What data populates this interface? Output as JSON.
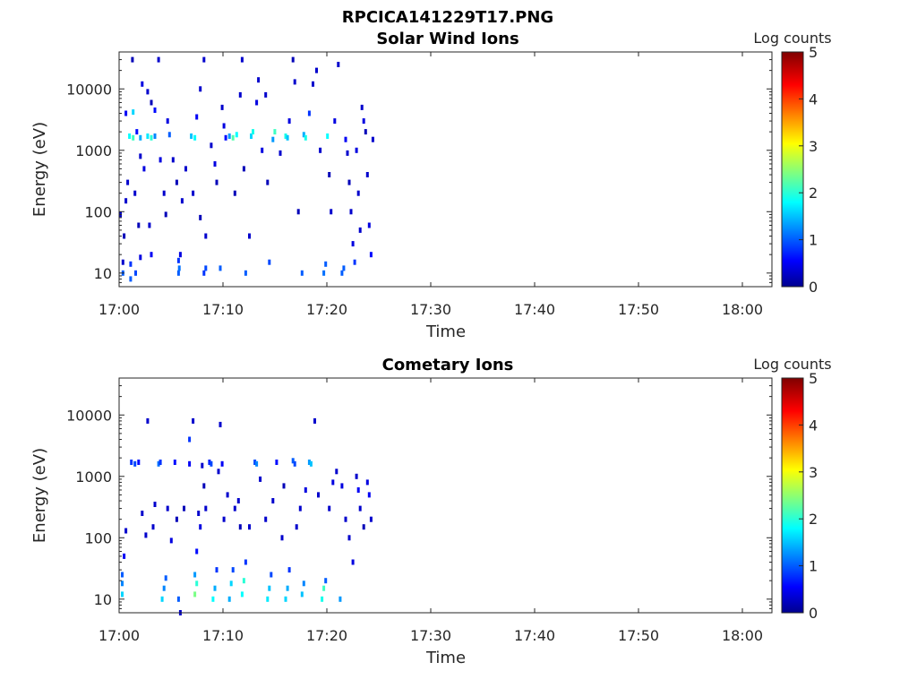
{
  "figure": {
    "title": "RPCICA141229T17.PNG"
  },
  "chart_data": [
    {
      "type": "heatmap",
      "title": "Solar Wind Ions",
      "xlabel": "Time",
      "ylabel": "Energy (eV)",
      "x_ticks": [
        "17:00",
        "17:10",
        "17:20",
        "17:30",
        "17:40",
        "17:50",
        "18:00"
      ],
      "y_ticks": [
        "10",
        "100",
        "1000",
        "10000"
      ],
      "y_scale": "log",
      "ylim_eV": [
        6,
        40000
      ],
      "colorbar": {
        "label": "Log counts",
        "ticks": [
          "0",
          "1",
          "2",
          "3",
          "4",
          "5"
        ],
        "range": [
          0,
          5
        ],
        "colormap": "jet"
      },
      "cells": [
        [
          17.07,
          10,
          1.0
        ],
        [
          17.07,
          15,
          0.3
        ],
        [
          17.28,
          8,
          1.0
        ],
        [
          17.28,
          14,
          0.8
        ],
        [
          17.33,
          30000,
          0.2
        ],
        [
          17.42,
          10,
          0.9
        ],
        [
          17.55,
          18,
          0.4
        ],
        [
          17.15,
          150,
          0.3
        ],
        [
          17.25,
          1700,
          1.8
        ],
        [
          17.35,
          1600,
          2.1
        ],
        [
          17.45,
          2000,
          0.6
        ],
        [
          17.55,
          1600,
          1.4
        ],
        [
          17.15,
          4000,
          0.5
        ],
        [
          17.35,
          4200,
          1.6
        ],
        [
          17.6,
          12000,
          0.4
        ],
        [
          17.75,
          9000,
          0.3
        ],
        [
          17.85,
          6000,
          0.2
        ],
        [
          17.95,
          4500,
          0.6
        ],
        [
          17.55,
          800,
          0.3
        ],
        [
          17.65,
          500,
          0.4
        ],
        [
          17.2,
          300,
          0.3
        ],
        [
          17.0,
          90,
          0.3
        ],
        [
          17.1,
          40,
          0.2
        ],
        [
          17.4,
          200,
          0.3
        ],
        [
          17.5,
          60,
          0.2
        ],
        [
          17.75,
          1700,
          1.7
        ],
        [
          17.85,
          1600,
          2.0
        ],
        [
          17.95,
          1700,
          1.2
        ],
        [
          17.85,
          20,
          0.5
        ],
        [
          17.8,
          60,
          0.3
        ],
        [
          18.05,
          30000,
          0.3
        ],
        [
          18.3,
          3000,
          0.4
        ],
        [
          18.35,
          1800,
          1.0
        ],
        [
          18.45,
          700,
          0.3
        ],
        [
          18.55,
          300,
          0.2
        ],
        [
          18.1,
          700,
          0.4
        ],
        [
          18.2,
          200,
          0.3
        ],
        [
          18.25,
          90,
          0.2
        ],
        [
          18.6,
          10,
          1.0
        ],
        [
          18.6,
          16,
          0.8
        ],
        [
          18.62,
          12,
          1.1
        ],
        [
          18.65,
          20,
          0.4
        ],
        [
          18.7,
          150,
          0.3
        ],
        [
          18.8,
          500,
          0.3
        ],
        [
          18.95,
          1700,
          1.5
        ],
        [
          19.05,
          1600,
          1.8
        ],
        [
          19.1,
          3500,
          0.5
        ],
        [
          19.2,
          10000,
          0.3
        ],
        [
          19.3,
          30000,
          0.3
        ],
        [
          19.0,
          200,
          0.3
        ],
        [
          19.2,
          80,
          0.2
        ],
        [
          19.3,
          10,
          0.8
        ],
        [
          19.35,
          12,
          0.9
        ],
        [
          19.35,
          40,
          0.3
        ],
        [
          19.5,
          1200,
          0.3
        ],
        [
          19.6,
          600,
          0.4
        ],
        [
          19.65,
          300,
          0.2
        ],
        [
          19.75,
          12,
          1.0
        ],
        [
          19.8,
          5000,
          0.3
        ],
        [
          19.85,
          2500,
          0.4
        ],
        [
          19.9,
          1600,
          0.6
        ],
        [
          20.0,
          1700,
          1.3
        ],
        [
          20.1,
          1600,
          2.2
        ],
        [
          20.2,
          1800,
          1.8
        ],
        [
          20.15,
          200,
          0.2
        ],
        [
          20.3,
          8000,
          0.3
        ],
        [
          20.35,
          30000,
          0.3
        ],
        [
          20.4,
          500,
          0.2
        ],
        [
          20.45,
          10,
          1.0
        ],
        [
          20.55,
          40,
          0.3
        ],
        [
          20.6,
          1700,
          1.6
        ],
        [
          20.65,
          2000,
          1.9
        ],
        [
          20.75,
          6000,
          0.4
        ],
        [
          20.8,
          14000,
          0.3
        ],
        [
          20.9,
          1000,
          0.4
        ],
        [
          21.0,
          8000,
          0.3
        ],
        [
          21.05,
          300,
          0.2
        ],
        [
          21.1,
          15,
          0.9
        ],
        [
          21.2,
          1500,
          1.3
        ],
        [
          21.25,
          2000,
          2.1
        ],
        [
          21.4,
          900,
          0.3
        ],
        [
          21.55,
          1700,
          1.9
        ],
        [
          21.6,
          1600,
          1.5
        ],
        [
          21.65,
          3000,
          0.4
        ],
        [
          21.75,
          30000,
          0.2
        ],
        [
          21.8,
          13000,
          0.3
        ],
        [
          21.9,
          100,
          0.2
        ],
        [
          22.0,
          10,
          1.0
        ],
        [
          22.05,
          1800,
          1.4
        ],
        [
          22.1,
          1600,
          1.9
        ],
        [
          22.2,
          4000,
          0.8
        ],
        [
          22.3,
          12000,
          0.3
        ],
        [
          22.4,
          20000,
          0.3
        ],
        [
          22.5,
          1000,
          0.3
        ],
        [
          22.6,
          10,
          1.1
        ],
        [
          22.65,
          14,
          1.0
        ],
        [
          22.7,
          1700,
          1.8
        ],
        [
          22.75,
          400,
          0.2
        ],
        [
          22.8,
          100,
          0.3
        ],
        [
          22.9,
          3000,
          0.4
        ],
        [
          23.0,
          25000,
          0.3
        ],
        [
          23.1,
          10,
          1.0
        ],
        [
          23.15,
          12,
          1.0
        ],
        [
          23.2,
          1500,
          0.5
        ],
        [
          23.25,
          900,
          0.3
        ],
        [
          23.3,
          300,
          0.2
        ],
        [
          23.35,
          100,
          0.3
        ],
        [
          23.4,
          30,
          0.4
        ],
        [
          23.45,
          15,
          0.8
        ],
        [
          23.5,
          1000,
          0.4
        ],
        [
          23.55,
          200,
          0.3
        ],
        [
          23.6,
          50,
          0.3
        ],
        [
          23.65,
          5000,
          0.3
        ],
        [
          23.7,
          3000,
          0.4
        ],
        [
          23.75,
          2000,
          0.2
        ],
        [
          23.8,
          400,
          0.3
        ],
        [
          23.85,
          60,
          0.4
        ],
        [
          23.9,
          20,
          0.6
        ],
        [
          23.95,
          1500,
          0.3
        ]
      ]
    },
    {
      "type": "heatmap",
      "title": "Cometary Ions",
      "xlabel": "Time",
      "ylabel": "Energy (eV)",
      "x_ticks": [
        "17:00",
        "17:10",
        "17:20",
        "17:30",
        "17:40",
        "17:50",
        "18:00"
      ],
      "y_ticks": [
        "10",
        "100",
        "1000",
        "10000"
      ],
      "y_scale": "log",
      "ylim_eV": [
        6,
        40000
      ],
      "colorbar": {
        "label": "Log counts",
        "ticks": [
          "0",
          "1",
          "2",
          "3",
          "4",
          "5"
        ],
        "range": [
          0,
          5
        ],
        "colormap": "jet"
      },
      "cells": [
        [
          17.05,
          12,
          1.6
        ],
        [
          17.05,
          18,
          1.2
        ],
        [
          17.05,
          25,
          1.0
        ],
        [
          17.1,
          50,
          0.5
        ],
        [
          17.15,
          130,
          0.3
        ],
        [
          17.3,
          1700,
          0.8
        ],
        [
          17.4,
          1600,
          0.9
        ],
        [
          17.5,
          1700,
          0.6
        ],
        [
          17.6,
          250,
          0.3
        ],
        [
          17.7,
          110,
          0.3
        ],
        [
          17.75,
          8000,
          0.3
        ],
        [
          17.9,
          150,
          0.3
        ],
        [
          17.95,
          350,
          0.3
        ],
        [
          18.05,
          1600,
          1.1
        ],
        [
          18.1,
          1700,
          0.8
        ],
        [
          18.15,
          10,
          1.6
        ],
        [
          18.2,
          15,
          1.2
        ],
        [
          18.25,
          22,
          1.0
        ],
        [
          18.3,
          300,
          0.3
        ],
        [
          18.4,
          90,
          0.4
        ],
        [
          18.5,
          1700,
          0.6
        ],
        [
          18.55,
          200,
          0.2
        ],
        [
          18.6,
          10,
          1.0
        ],
        [
          18.65,
          6,
          0.3
        ],
        [
          18.75,
          300,
          0.2
        ],
        [
          18.9,
          1600,
          0.5
        ],
        [
          18.9,
          4000,
          0.8
        ],
        [
          19.0,
          8000,
          0.3
        ],
        [
          19.05,
          12,
          2.4
        ],
        [
          19.1,
          18,
          2.0
        ],
        [
          19.05,
          25,
          1.3
        ],
        [
          19.1,
          60,
          0.6
        ],
        [
          19.15,
          250,
          0.3
        ],
        [
          19.2,
          150,
          0.4
        ],
        [
          19.25,
          1500,
          0.3
        ],
        [
          19.3,
          700,
          0.2
        ],
        [
          19.35,
          300,
          0.3
        ],
        [
          19.45,
          1700,
          0.7
        ],
        [
          19.5,
          1600,
          0.9
        ],
        [
          19.55,
          10,
          1.8
        ],
        [
          19.6,
          15,
          1.4
        ],
        [
          19.65,
          30,
          0.8
        ],
        [
          19.7,
          1200,
          0.3
        ],
        [
          19.75,
          7000,
          0.3
        ],
        [
          19.8,
          1600,
          0.5
        ],
        [
          19.85,
          200,
          0.3
        ],
        [
          19.95,
          500,
          0.3
        ],
        [
          20.0,
          10,
          1.4
        ],
        [
          20.05,
          18,
          1.6
        ],
        [
          20.1,
          30,
          0.9
        ],
        [
          20.15,
          300,
          0.3
        ],
        [
          20.25,
          400,
          0.3
        ],
        [
          20.3,
          150,
          0.2
        ],
        [
          20.35,
          12,
          1.8
        ],
        [
          20.4,
          20,
          2.0
        ],
        [
          20.45,
          40,
          0.8
        ],
        [
          20.55,
          150,
          0.3
        ],
        [
          20.7,
          1700,
          0.9
        ],
        [
          20.75,
          1600,
          1.2
        ],
        [
          20.85,
          900,
          0.3
        ],
        [
          21.0,
          200,
          0.3
        ],
        [
          21.05,
          10,
          1.7
        ],
        [
          21.1,
          15,
          1.5
        ],
        [
          21.15,
          25,
          0.9
        ],
        [
          21.2,
          400,
          0.3
        ],
        [
          21.3,
          1700,
          0.6
        ],
        [
          21.45,
          100,
          0.3
        ],
        [
          21.5,
          700,
          0.2
        ],
        [
          21.55,
          10,
          1.6
        ],
        [
          21.6,
          15,
          1.4
        ],
        [
          21.65,
          30,
          0.8
        ],
        [
          21.75,
          1800,
          1.0
        ],
        [
          21.8,
          1600,
          0.9
        ],
        [
          21.85,
          150,
          0.3
        ],
        [
          21.95,
          300,
          0.3
        ],
        [
          22.0,
          12,
          1.5
        ],
        [
          22.05,
          18,
          1.2
        ],
        [
          22.1,
          600,
          0.4
        ],
        [
          22.2,
          1700,
          1.3
        ],
        [
          22.25,
          1600,
          1.5
        ],
        [
          22.35,
          8000,
          0.3
        ],
        [
          22.45,
          500,
          0.3
        ],
        [
          22.55,
          10,
          1.9
        ],
        [
          22.6,
          15,
          2.1
        ],
        [
          22.65,
          20,
          1.0
        ],
        [
          22.75,
          300,
          0.3
        ],
        [
          22.85,
          800,
          0.4
        ],
        [
          22.95,
          1200,
          0.3
        ],
        [
          23.05,
          10,
          1.3
        ],
        [
          23.1,
          700,
          0.4
        ],
        [
          23.2,
          200,
          0.3
        ],
        [
          23.3,
          100,
          0.3
        ],
        [
          23.4,
          40,
          0.4
        ],
        [
          23.5,
          1000,
          0.3
        ],
        [
          23.55,
          600,
          0.5
        ],
        [
          23.6,
          300,
          0.3
        ],
        [
          23.7,
          150,
          0.2
        ],
        [
          23.8,
          800,
          0.4
        ],
        [
          23.85,
          500,
          0.5
        ],
        [
          23.9,
          200,
          0.3
        ]
      ]
    }
  ]
}
